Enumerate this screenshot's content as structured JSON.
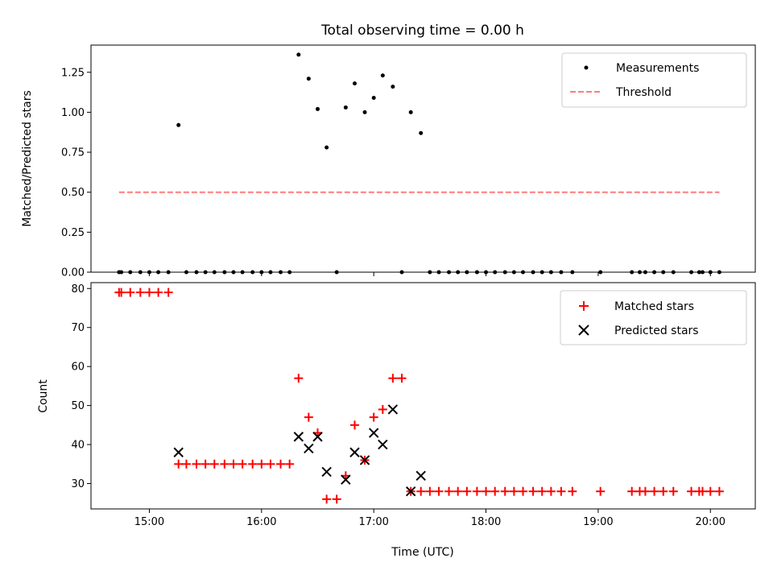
{
  "chart_data": {
    "title": "Total observing time = 0.00 h",
    "xlabel": "Time (UTC)",
    "x_tick_labels": [
      "15:00",
      "16:00",
      "17:00",
      "18:00",
      "19:00",
      "20:00"
    ],
    "x_ticks_hours": [
      15,
      16,
      17,
      18,
      19,
      20
    ],
    "xlim_hours": [
      14.48,
      20.4
    ],
    "panels": [
      {
        "type": "scatter",
        "ylabel": "Matched/Predicted stars",
        "ylim": [
          0,
          1.42
        ],
        "y_ticks": [
          0,
          0.25,
          0.5,
          0.75,
          1.0,
          1.25
        ],
        "y_tick_labels": [
          "0.00",
          "0.25",
          "0.50",
          "0.75",
          "1.00",
          "1.25"
        ],
        "legend_position": "upper right",
        "series": [
          {
            "name": "Measurements",
            "marker": "dot",
            "color": "#000000",
            "x_hours": [
              14.73,
              14.75,
              14.83,
              14.92,
              15.0,
              15.08,
              15.17,
              15.26,
              15.33,
              15.42,
              15.5,
              15.58,
              15.67,
              15.75,
              15.83,
              15.92,
              16.0,
              16.08,
              16.17,
              16.25,
              16.33,
              16.42,
              16.5,
              16.58,
              16.67,
              16.75,
              16.83,
              16.92,
              17.0,
              17.08,
              17.17,
              17.25,
              17.33,
              17.42,
              17.5,
              17.58,
              17.67,
              17.75,
              17.83,
              17.92,
              18.0,
              18.08,
              18.17,
              18.25,
              18.33,
              18.42,
              18.5,
              18.58,
              18.67,
              18.77,
              19.02,
              19.3,
              19.37,
              19.42,
              19.5,
              19.58,
              19.67,
              19.83,
              19.9,
              19.93,
              20.0,
              20.08
            ],
            "y": [
              0,
              0,
              0,
              0,
              0,
              0,
              0,
              0.92,
              0,
              0,
              0,
              0,
              0,
              0,
              0,
              0,
              0,
              0,
              0,
              0,
              1.36,
              1.21,
              1.02,
              0.78,
              0,
              1.03,
              1.18,
              1.0,
              1.09,
              1.23,
              1.16,
              0,
              1.0,
              0.87,
              0,
              0,
              0,
              0,
              0,
              0,
              0,
              0,
              0,
              0,
              0,
              0,
              0,
              0,
              0,
              0,
              0,
              0,
              0,
              0,
              0,
              0,
              0,
              0,
              0,
              0,
              0,
              0
            ]
          },
          {
            "name": "Threshold",
            "marker": "dashed-line",
            "color": "#ff7b7b",
            "x_hours": [
              14.73,
              20.08
            ],
            "y": [
              0.5,
              0.5
            ]
          }
        ]
      },
      {
        "type": "scatter",
        "ylabel": "Count",
        "ylim": [
          23.5,
          81.5
        ],
        "y_ticks": [
          30,
          40,
          50,
          60,
          70,
          80
        ],
        "y_tick_labels": [
          "30",
          "40",
          "50",
          "60",
          "70",
          "80"
        ],
        "legend_position": "upper right",
        "series": [
          {
            "name": "Matched stars",
            "marker": "plus",
            "color": "#ff0000",
            "x_hours": [
              14.73,
              14.75,
              14.83,
              14.92,
              15.0,
              15.08,
              15.17,
              15.26,
              15.33,
              15.42,
              15.5,
              15.58,
              15.67,
              15.75,
              15.83,
              15.92,
              16.0,
              16.08,
              16.17,
              16.25,
              16.33,
              16.42,
              16.5,
              16.58,
              16.67,
              16.75,
              16.83,
              16.92,
              17.0,
              17.08,
              17.17,
              17.25,
              17.33,
              17.42,
              17.5,
              17.58,
              17.67,
              17.75,
              17.83,
              17.92,
              18.0,
              18.08,
              18.17,
              18.25,
              18.33,
              18.42,
              18.5,
              18.58,
              18.67,
              18.77,
              19.02,
              19.3,
              19.37,
              19.42,
              19.5,
              19.58,
              19.67,
              19.83,
              19.9,
              19.93,
              20.0,
              20.08
            ],
            "y": [
              79,
              79,
              79,
              79,
              79,
              79,
              79,
              35,
              35,
              35,
              35,
              35,
              35,
              35,
              35,
              35,
              35,
              35,
              35,
              35,
              57,
              47,
              43,
              26,
              26,
              32,
              45,
              36,
              47,
              49,
              57,
              57,
              28,
              28,
              28,
              28,
              28,
              28,
              28,
              28,
              28,
              28,
              28,
              28,
              28,
              28,
              28,
              28,
              28,
              28,
              28,
              28,
              28,
              28,
              28,
              28,
              28,
              28,
              28,
              28,
              28,
              28
            ]
          },
          {
            "name": "Predicted stars",
            "marker": "x",
            "color": "#000000",
            "x_hours": [
              15.26,
              16.33,
              16.42,
              16.5,
              16.58,
              16.75,
              16.83,
              16.92,
              17.0,
              17.08,
              17.17,
              17.33,
              17.42
            ],
            "y": [
              38,
              42,
              39,
              42,
              33,
              31,
              38,
              36,
              43,
              40,
              49,
              28,
              32
            ]
          }
        ]
      }
    ]
  }
}
